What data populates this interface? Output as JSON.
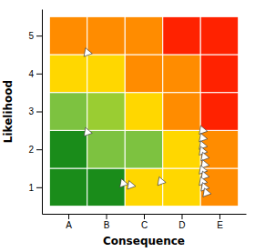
{
  "chart_data": {
    "type": "risk_matrix",
    "xlabel": "Consequence",
    "ylabel": "Likelihood",
    "xlim": [
      0.3,
      5.7
    ],
    "ylim": [
      0.3,
      5.7
    ],
    "xticks": [
      {
        "value": 1,
        "label": "A"
      },
      {
        "value": 2,
        "label": "B"
      },
      {
        "value": 3,
        "label": "C"
      },
      {
        "value": 4,
        "label": "D"
      },
      {
        "value": 5,
        "label": "E"
      }
    ],
    "yticks": [
      1,
      2,
      3,
      4,
      5
    ],
    "cell_colors": [
      [
        "#1a8c1a",
        "#1a8c1a",
        "#FFD700",
        "#FFD700",
        "#FF8C00"
      ],
      [
        "#1a8c1a",
        "#7DC240",
        "#7DC240",
        "#FFD700",
        "#FF8C00"
      ],
      [
        "#7DC240",
        "#9ACD32",
        "#FFD700",
        "#FF8C00",
        "#FF2200"
      ],
      [
        "#FFD700",
        "#FFD700",
        "#FF8C00",
        "#FF8C00",
        "#FF2200"
      ],
      [
        "#FF8C00",
        "#FF8C00",
        "#FF8C00",
        "#FF2200",
        "#FF2200"
      ]
    ],
    "series": [
      {
        "type": "scatter",
        "marker": "triangle",
        "color": "#ffffff",
        "x": [
          1.5,
          1.5,
          2.45,
          2.65,
          3.45,
          4.55,
          4.55,
          4.55,
          4.55,
          4.6,
          4.6,
          4.55,
          4.6,
          4.55,
          4.6,
          4.65
        ],
        "values": [
          4.55,
          2.45,
          1.1,
          1.05,
          1.15,
          2.5,
          2.3,
          2.1,
          1.95,
          1.8,
          1.6,
          1.45,
          1.3,
          1.15,
          1.0,
          0.85
        ]
      }
    ]
  }
}
